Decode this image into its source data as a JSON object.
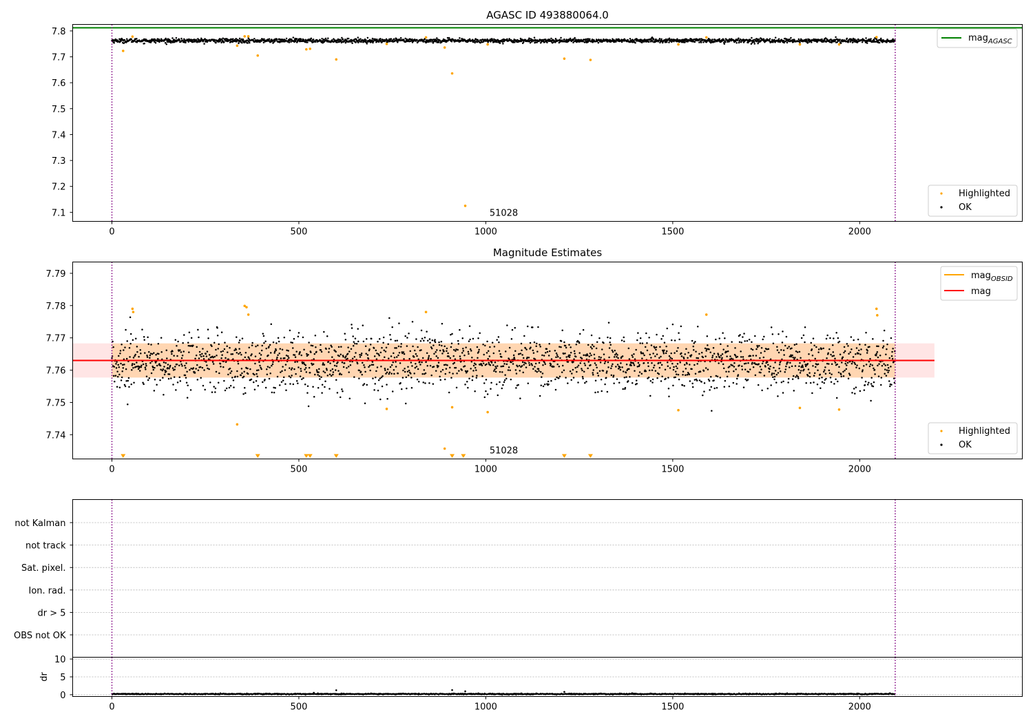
{
  "chart_data": [
    {
      "type": "scatter",
      "title": "AGASC ID 493880064.0",
      "xlim": [
        -105,
        2435
      ],
      "ylim": [
        7.065,
        7.825
      ],
      "xticks": [
        0,
        500,
        1000,
        1500,
        2000
      ],
      "yticks": [
        7.1,
        7.2,
        7.3,
        7.4,
        7.5,
        7.6,
        7.7,
        7.8
      ],
      "obsid_label": "51028",
      "obsid_label_x": 1010,
      "vlines": [
        0,
        2095
      ],
      "hlines": [
        {
          "name": "mag_AGASC",
          "y": 7.812,
          "color": "#008000"
        }
      ],
      "ok_series": {
        "name": "OK",
        "color": "#000000",
        "n": 2095,
        "center": 7.7625,
        "spread": 0.004
      },
      "highlighted": {
        "name": "Highlighted",
        "color": "#ffa500",
        "x": [
          30,
          55,
          335,
          355,
          365,
          390,
          520,
          530,
          600,
          735,
          840,
          890,
          910,
          945,
          1005,
          1210,
          1280,
          1515,
          1590,
          1840,
          1945,
          2045
        ],
        "y": [
          7.723,
          7.778,
          7.743,
          7.779,
          7.779,
          7.705,
          7.729,
          7.731,
          7.69,
          7.75,
          7.775,
          7.736,
          7.636,
          7.125,
          7.748,
          7.693,
          7.688,
          7.748,
          7.775,
          7.748,
          7.748,
          7.776
        ]
      },
      "legend_top": [
        {
          "label": "mag",
          "sub": "AGASC",
          "color": "#008000"
        }
      ],
      "legend_bottom": [
        {
          "label": "Highlighted",
          "color": "#ffa500"
        },
        {
          "label": "OK",
          "color": "#000000"
        }
      ]
    },
    {
      "type": "scatter",
      "title": "Magnitude Estimates",
      "xlim": [
        -105,
        2435
      ],
      "ylim": [
        7.7325,
        7.7935
      ],
      "xticks": [
        0,
        500,
        1000,
        1500,
        2000
      ],
      "yticks": [
        7.74,
        7.75,
        7.76,
        7.77,
        7.78,
        7.79
      ],
      "obsid_label": "51028",
      "obsid_label_x": 1010,
      "vlines": [
        0,
        2095
      ],
      "mag": 7.763,
      "mag_band": {
        "x": [
          -105,
          2200
        ],
        "y": [
          7.7577,
          7.7683
        ]
      },
      "mag_obsid_band": {
        "x": [
          0,
          2095
        ],
        "y": [
          7.7577,
          7.7683
        ]
      },
      "ok_series": {
        "name": "OK",
        "color": "#000000",
        "n": 2095,
        "center": 7.7625,
        "spread": 0.0045
      },
      "highlighted": {
        "name": "Highlighted",
        "color": "#ffa500",
        "x": [
          55,
          57,
          335,
          355,
          360,
          365,
          735,
          840,
          890,
          910,
          1005,
          1515,
          1590,
          1840,
          1945,
          2045,
          2047
        ],
        "y": [
          7.779,
          7.778,
          7.7432,
          7.7799,
          7.7795,
          7.7772,
          7.748,
          7.778,
          7.7357,
          7.7485,
          7.747,
          7.7476,
          7.7772,
          7.7483,
          7.7478,
          7.779,
          7.777
        ]
      },
      "off_scale_x": [
        30,
        390,
        520,
        530,
        600,
        910,
        940,
        1210,
        1280
      ],
      "legend_top": [
        {
          "label": "mag",
          "sub": "OBSID",
          "color": "#ffa500"
        },
        {
          "label": "mag",
          "sub": "",
          "color": "#ff0000"
        }
      ],
      "legend_bottom": [
        {
          "label": "Highlighted",
          "color": "#ffa500"
        },
        {
          "label": "OK",
          "color": "#000000"
        }
      ]
    },
    {
      "type": "scatter",
      "title": "",
      "xlim": [
        -105,
        2435
      ],
      "vlines": [
        0,
        2095
      ],
      "flag_rows": [
        "not Kalman",
        "not track",
        "Sat. pixel.",
        "Ion. rad.",
        "dr > 5",
        "OBS not OK"
      ],
      "flags_set": []
    },
    {
      "type": "scatter",
      "title": "",
      "ylabel": "dr",
      "xlim": [
        -105,
        2435
      ],
      "ylim": [
        -0.5,
        10.5
      ],
      "xticks": [
        0,
        500,
        1000,
        1500,
        2000
      ],
      "yticks": [
        0,
        5,
        10
      ],
      "vlines": [
        0,
        2095
      ],
      "dr_series": {
        "color": "#000000",
        "n": 2095,
        "center": 0.2,
        "spread": 0.08
      },
      "dr_outliers": {
        "x": [
          540,
          600,
          910,
          945,
          1210
        ],
        "y": [
          0.55,
          1.25,
          1.3,
          0.95,
          0.8
        ]
      }
    }
  ]
}
